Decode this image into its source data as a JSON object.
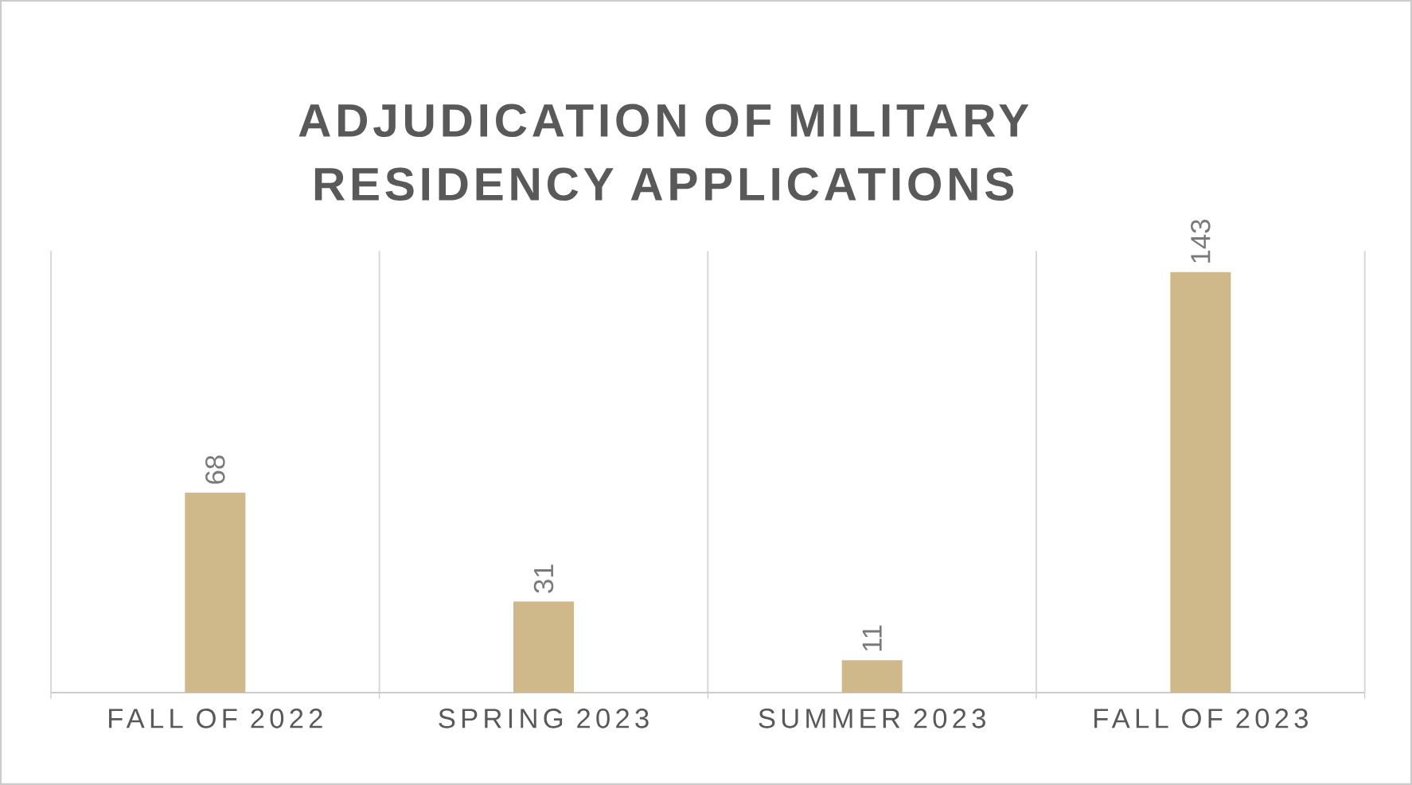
{
  "chart_data": {
    "type": "bar",
    "title": "ADJUDICATION OF MILITARY RESIDENCY APPLICATIONS",
    "categories": [
      "FALL OF 2022",
      "SPRING 2023",
      "SUMMER 2023",
      "FALL OF 2023"
    ],
    "values": [
      68,
      31,
      11,
      143
    ],
    "color": "#cfb88a",
    "data_labels": true,
    "grid": "x"
  }
}
